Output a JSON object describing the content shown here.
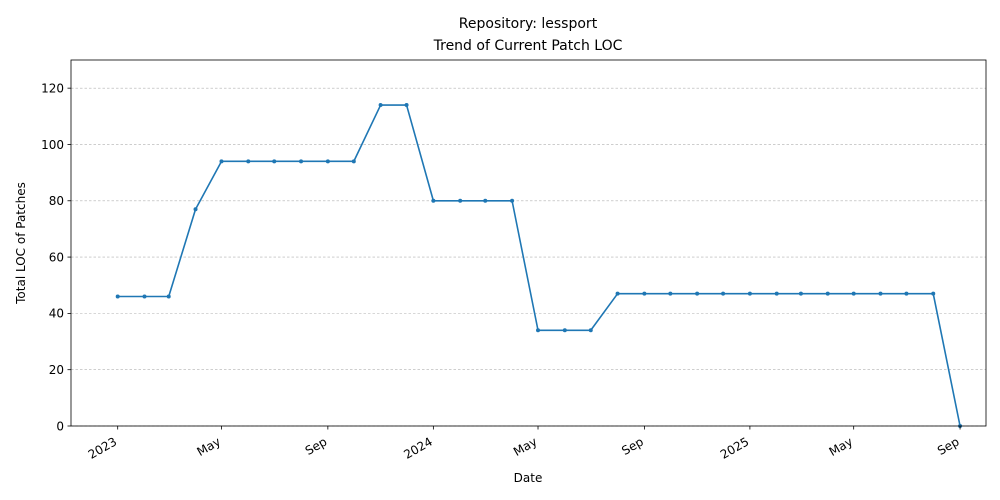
{
  "chart_data": {
    "type": "line",
    "title": "Repository: lessport",
    "subtitle": "Trend of Current Patch LOC",
    "xlabel": "Date",
    "ylabel": "Total LOC of Patches",
    "ylim": [
      0,
      130
    ],
    "yticks": [
      0,
      20,
      40,
      60,
      80,
      100,
      120
    ],
    "xlim": [
      "2022-11-08",
      "2025-10-01"
    ],
    "xticks": [
      {
        "date": "2023-01-01",
        "label": "2023"
      },
      {
        "date": "2023-05-01",
        "label": "May"
      },
      {
        "date": "2023-09-01",
        "label": "Sep"
      },
      {
        "date": "2024-01-01",
        "label": "2024"
      },
      {
        "date": "2024-05-01",
        "label": "May"
      },
      {
        "date": "2024-09-01",
        "label": "Sep"
      },
      {
        "date": "2025-01-01",
        "label": "2025"
      },
      {
        "date": "2025-05-01",
        "label": "May"
      },
      {
        "date": "2025-09-01",
        "label": "Sep"
      }
    ],
    "grid": {
      "y": true,
      "x": false
    },
    "color": "#1f77b4",
    "series": [
      {
        "x": [
          "2023-01-01",
          "2023-02-01",
          "2023-03-01",
          "2023-04-01",
          "2023-05-01",
          "2023-06-01",
          "2023-07-01",
          "2023-08-01",
          "2023-09-01",
          "2023-10-01",
          "2023-11-01",
          "2023-12-01",
          "2024-01-01",
          "2024-02-01",
          "2024-03-01",
          "2024-04-01",
          "2024-05-01",
          "2024-06-01",
          "2024-07-01",
          "2024-08-01",
          "2024-09-01",
          "2024-10-01",
          "2024-11-01",
          "2024-12-01",
          "2025-01-01",
          "2025-02-01",
          "2025-03-01",
          "2025-04-01",
          "2025-05-01",
          "2025-06-01",
          "2025-07-01",
          "2025-08-01",
          "2025-09-01"
        ],
        "values": [
          46,
          46,
          46,
          77,
          94,
          94,
          94,
          94,
          94,
          94,
          114,
          114,
          80,
          80,
          80,
          80,
          34,
          34,
          34,
          47,
          47,
          47,
          47,
          47,
          47,
          47,
          47,
          47,
          47,
          47,
          47,
          47,
          0
        ]
      }
    ]
  }
}
